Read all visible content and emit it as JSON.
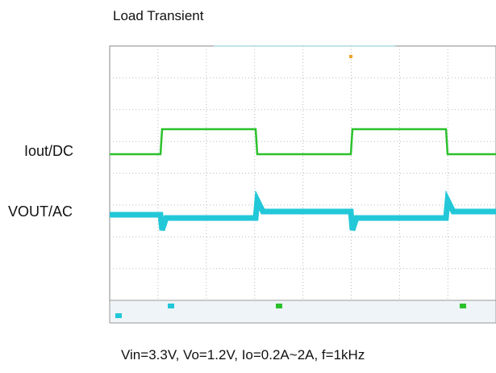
{
  "header": {
    "title": "Load Transient"
  },
  "labels": {
    "iout": "Iout/DC",
    "vout": "VOUT/AC"
  },
  "caption": "Vin=3.3V, Vo=1.2V, Io=0.2A~2A, f=1kHz"
}
